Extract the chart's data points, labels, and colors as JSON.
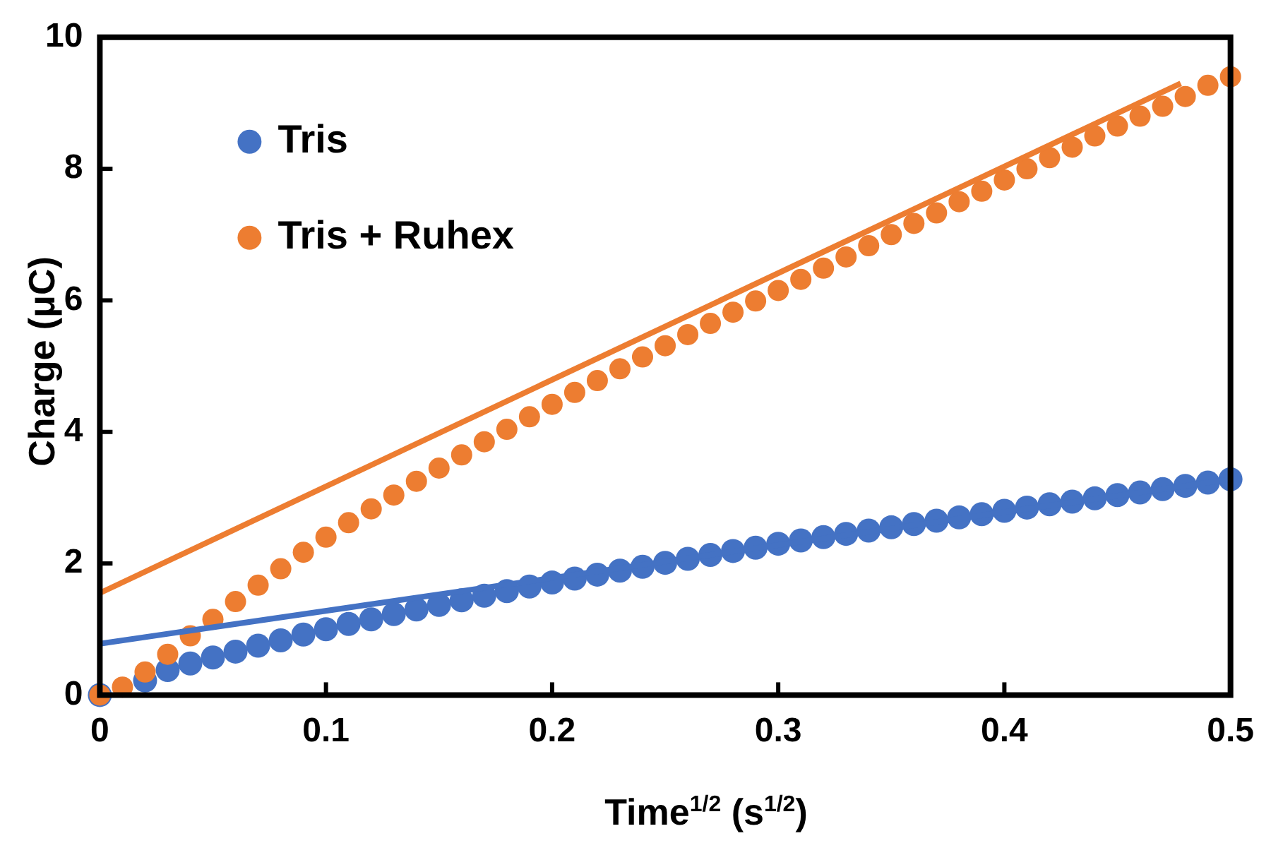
{
  "chart_data": {
    "type": "scatter",
    "xlabel": "Time$^{1/2}$ (s$^{1/2}$)",
    "ylabel": "Charge (μC)",
    "x": [
      0,
      0.01,
      0.02,
      0.03,
      0.04,
      0.05,
      0.06,
      0.07,
      0.08,
      0.09,
      0.1,
      0.11,
      0.12,
      0.13,
      0.14,
      0.15,
      0.16,
      0.17,
      0.18,
      0.19,
      0.2,
      0.21,
      0.22,
      0.23,
      0.24,
      0.25,
      0.26,
      0.27,
      0.28,
      0.29,
      0.3,
      0.31,
      0.32,
      0.33,
      0.34,
      0.35,
      0.36,
      0.37,
      0.38,
      0.39,
      0.4,
      0.41,
      0.42,
      0.43,
      0.44,
      0.45,
      0.46,
      0.47,
      0.48,
      0.49,
      0.5
    ],
    "series": [
      {
        "name": "Tris",
        "color": "#4472c4",
        "marker": "circle",
        "values": [
          0,
          null,
          0.22,
          0.38,
          0.48,
          0.57,
          0.66,
          0.75,
          0.83,
          0.92,
          1.0,
          1.08,
          1.15,
          1.23,
          1.3,
          1.37,
          1.44,
          1.51,
          1.58,
          1.65,
          1.71,
          1.77,
          1.83,
          1.89,
          1.95,
          2.01,
          2.07,
          2.13,
          2.19,
          2.24,
          2.3,
          2.35,
          2.4,
          2.45,
          2.5,
          2.55,
          2.6,
          2.65,
          2.7,
          2.75,
          2.8,
          2.85,
          2.9,
          2.94,
          2.99,
          3.04,
          3.08,
          3.13,
          3.18,
          3.23,
          3.28
        ]
      },
      {
        "name": "Tris + Ruhex",
        "color": "#ed7d31",
        "marker": "circle",
        "values": [
          0,
          0.12,
          0.35,
          0.62,
          0.9,
          1.15,
          1.42,
          1.67,
          1.92,
          2.17,
          2.4,
          2.62,
          2.83,
          3.04,
          3.25,
          3.45,
          3.65,
          3.85,
          4.04,
          4.23,
          4.42,
          4.6,
          4.78,
          4.96,
          5.14,
          5.31,
          5.48,
          5.65,
          5.82,
          5.99,
          6.15,
          6.32,
          6.49,
          6.66,
          6.83,
          7.0,
          7.17,
          7.33,
          7.5,
          7.66,
          7.83,
          8.0,
          8.17,
          8.33,
          8.5,
          8.65,
          8.8,
          8.95,
          9.1,
          9.27,
          9.4
        ]
      },
      {
        "type": "line",
        "color": "#4472c4",
        "marker": "none",
        "line_style": "solid",
        "x": [
          0,
          0.5
        ],
        "values": [
          0.78,
          3.28
        ]
      },
      {
        "type": "line",
        "color": "#ed7d31",
        "marker": "none",
        "line_style": "solid",
        "x": [
          0,
          0.478
        ],
        "values": [
          1.55,
          9.3
        ]
      }
    ],
    "xlim": [
      0,
      0.5
    ],
    "xticks": [
      0,
      0.1,
      0.2,
      0.3,
      0.4,
      0.5
    ],
    "ylim": [
      0,
      10
    ],
    "yticks": [
      0,
      2,
      4,
      6,
      8,
      10
    ],
    "grid": false,
    "legend": "top left"
  }
}
